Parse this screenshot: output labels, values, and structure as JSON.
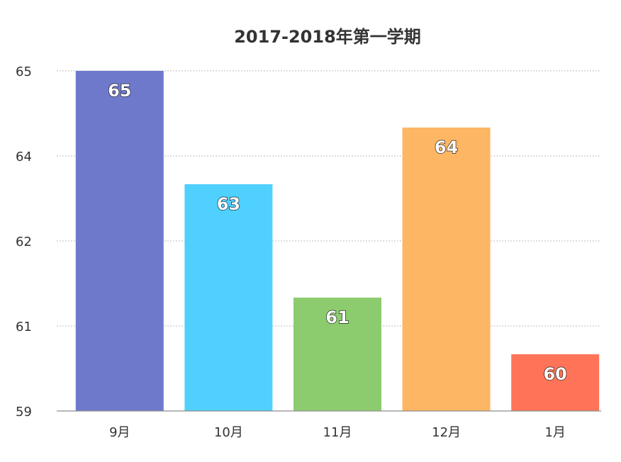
{
  "chart_data": {
    "type": "bar",
    "title": "2017-2018年第一学期",
    "xlabel": "",
    "ylabel": "",
    "categories": [
      "9月",
      "10月",
      "11月",
      "12月",
      "1月"
    ],
    "values": [
      65,
      63,
      61,
      64,
      60
    ],
    "value_labels": [
      "65",
      "63",
      "61",
      "64",
      "60"
    ],
    "y_ticks": [
      59,
      61,
      62,
      64,
      65
    ],
    "y_tick_labels": [
      "59",
      "61",
      "62",
      "64",
      "65"
    ],
    "ylim": [
      59,
      65
    ],
    "colors": [
      "#6f79cb",
      "#4fd0ff",
      "#8ccc6e",
      "#fdb664",
      "#ff7458"
    ],
    "grid": true,
    "legend": "none"
  }
}
